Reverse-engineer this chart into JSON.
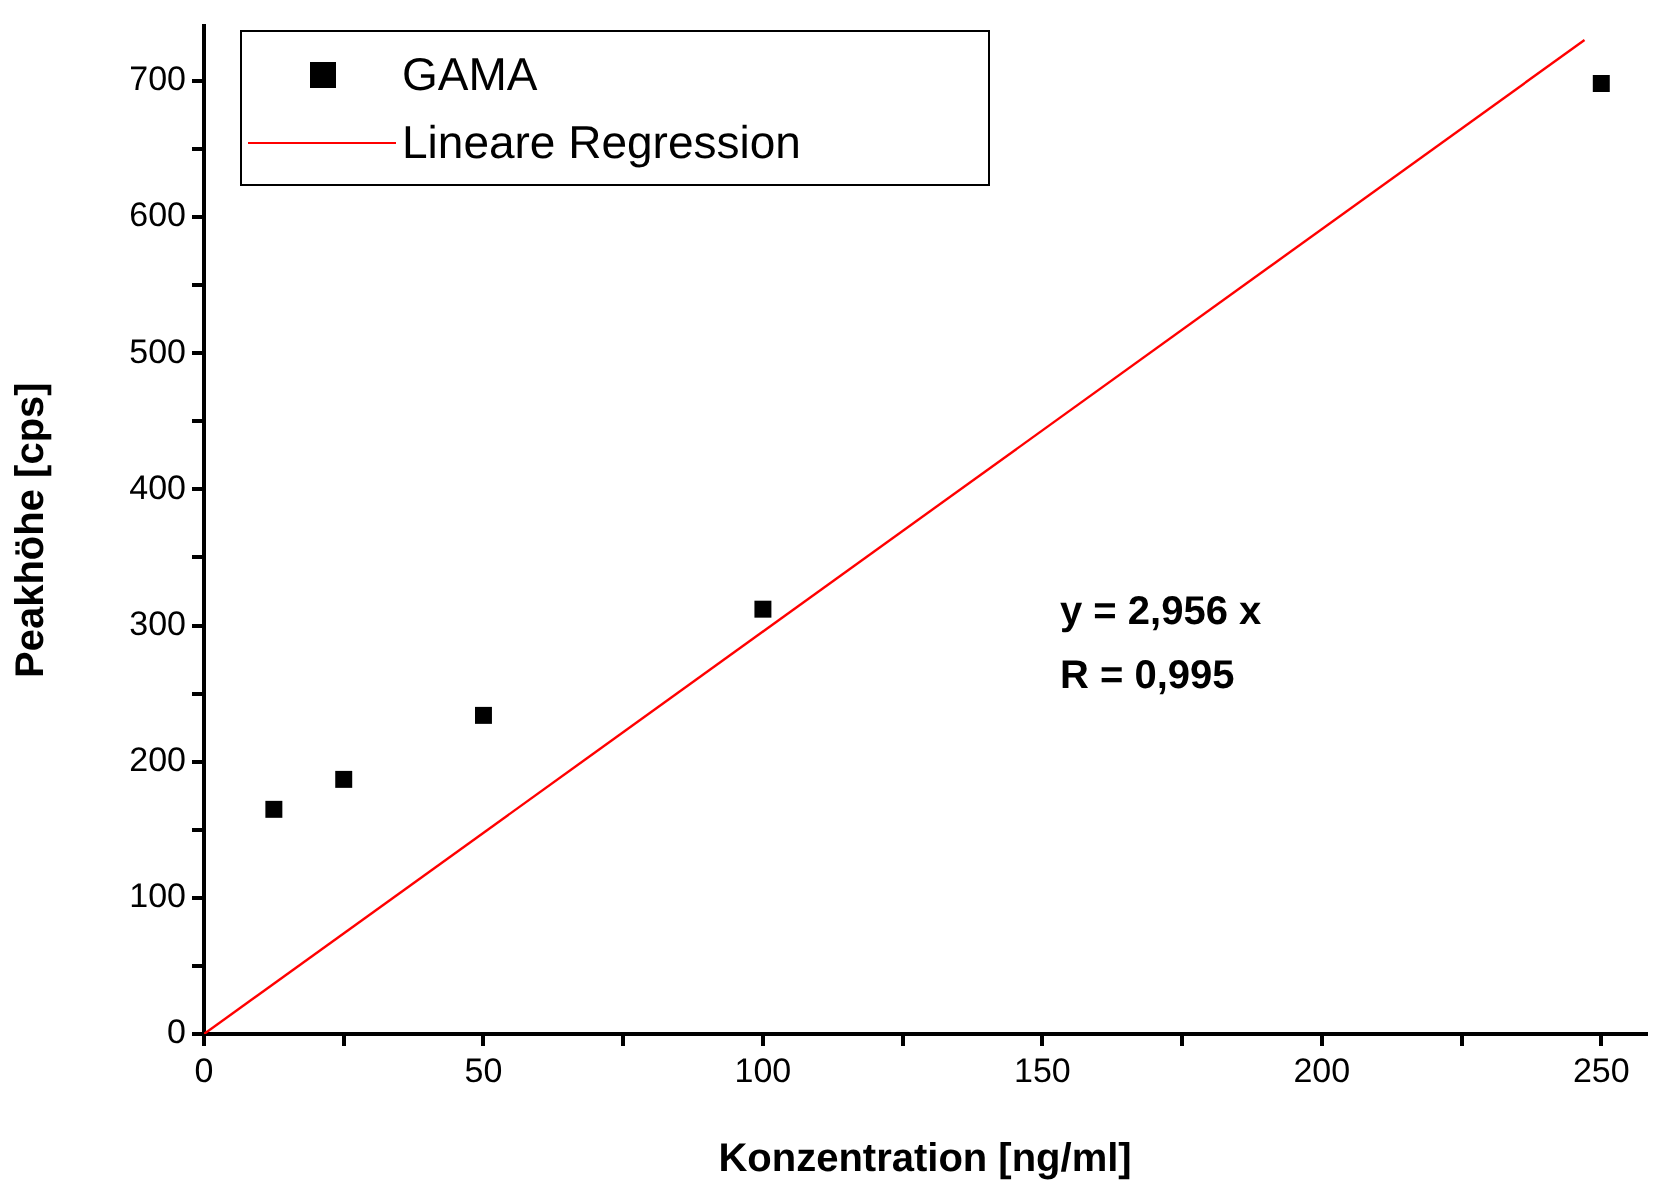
{
  "chart_data": {
    "type": "scatter",
    "xlabel": "Konzentration [ng/ml]",
    "ylabel": "Peakhöhe [cps]",
    "xlim": [
      0,
      258
    ],
    "ylim": [
      0,
      740
    ],
    "xticks": [
      0,
      {
        "value": 25,
        "label": null
      },
      50,
      {
        "value": 75,
        "label": null
      },
      100,
      {
        "value": 125,
        "label": null
      },
      150,
      {
        "value": 175,
        "label": null
      },
      200,
      {
        "value": 225,
        "label": null
      },
      250
    ],
    "yticks": [
      0,
      {
        "value": 50,
        "label": null
      },
      100,
      {
        "value": 150,
        "label": null
      },
      200,
      {
        "value": 250,
        "label": null
      },
      300,
      {
        "value": 350,
        "label": null
      },
      400,
      {
        "value": 450,
        "label": null
      },
      500,
      {
        "value": 550,
        "label": null
      },
      600,
      {
        "value": 650,
        "label": null
      },
      700
    ],
    "grid": false,
    "legend": "top left",
    "marker": "square",
    "series": [
      {
        "name": "GAMA",
        "color": "#000000",
        "x": [
          12.5,
          25,
          50,
          100,
          250
        ],
        "values": [
          165,
          187,
          234,
          312,
          698
        ]
      },
      {
        "name": "Lineare Regression",
        "type": "line",
        "color": "#ff0000",
        "x": [
          0,
          247
        ],
        "values": [
          0,
          730
        ],
        "marker": "none",
        "line_style": "solid"
      }
    ],
    "annotations": [
      "y = 2,956 x",
      "R = 0,995"
    ]
  }
}
